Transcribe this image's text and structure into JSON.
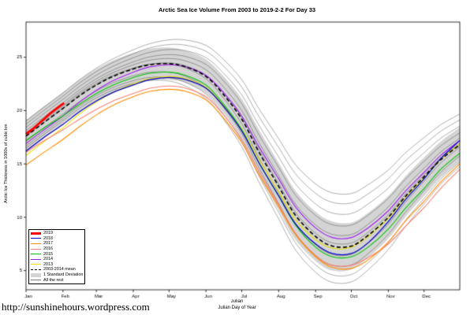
{
  "page": {
    "url_text": "http://sunshinehours.wordpress.com"
  },
  "chart_data": {
    "type": "line",
    "title": "Arctic Sea Ice Volume From 2003 to 2019-2-2  For Day 33",
    "xlabel_line1": "Julian",
    "xlabel_line2": "Julian Day of Year",
    "ylabel": "Arctic Ice Thickness in 1000s of cubic km",
    "xlim": [
      1,
      365
    ],
    "ylim": [
      3.2,
      28.3
    ],
    "grid": false,
    "legend_position": "bottom-left",
    "y_ticks": [
      5,
      10,
      15,
      20,
      25
    ],
    "month_tick_days": [
      1,
      32,
      60,
      91,
      121,
      152,
      182,
      213,
      244,
      274,
      305,
      335
    ],
    "month_labels": [
      "Jan",
      "Feb",
      "Mar",
      "Apr",
      "May",
      "Jun",
      "Jul",
      "Aug",
      "Sep",
      "Oct",
      "Nov",
      "Dec"
    ],
    "days": [
      1,
      15,
      32,
      46,
      60,
      74,
      91,
      105,
      121,
      135,
      152,
      166,
      182,
      196,
      213,
      227,
      244,
      258,
      274,
      288,
      305,
      319,
      335,
      349,
      365
    ],
    "mean_series": {
      "name": "2003-2014 mean",
      "color": "#000000",
      "dashed": true,
      "values": [
        17.6,
        18.8,
        20.2,
        21.4,
        22.4,
        23.2,
        23.9,
        24.3,
        24.4,
        24.1,
        23.2,
        21.6,
        19.2,
        16.2,
        12.9,
        10.2,
        8.2,
        7.3,
        7.3,
        8.3,
        10.0,
        11.9,
        13.8,
        15.4,
        16.8
      ]
    },
    "std_dev": {
      "name": "1 Standard Deviation",
      "color": "#d4d4d4",
      "values": [
        1.5,
        1.5,
        1.5,
        1.5,
        1.5,
        1.5,
        1.5,
        1.5,
        1.5,
        1.5,
        1.6,
        1.7,
        1.9,
        2.1,
        2.2,
        2.3,
        2.3,
        2.3,
        2.2,
        2.1,
        2.0,
        1.9,
        1.8,
        1.7,
        1.6
      ]
    },
    "background": {
      "name": "All the rest",
      "color": "rgba(45,45,45,0.55)",
      "seasonal_weight": [
        0.01,
        0.01,
        0.02,
        0.03,
        0.05,
        0.07,
        0.11,
        0.16,
        0.23,
        0.31,
        0.42,
        0.52,
        0.64,
        0.74,
        0.85,
        0.93,
        0.98,
        1.0,
        0.98,
        0.93,
        0.84,
        0.75,
        0.63,
        0.52,
        0.41
      ],
      "years": [
        {
          "year": "2003",
          "offset": 1.4,
          "summer_boost": 3.6
        },
        {
          "year": "2004",
          "offset": 1.1,
          "summer_boost": 3.0
        },
        {
          "year": "2005",
          "offset": 0.8,
          "summer_boost": 2.3
        },
        {
          "year": "2006",
          "offset": 0.5,
          "summer_boost": 1.5
        },
        {
          "year": "2007",
          "offset": 0.2,
          "summer_boost": -1.0
        },
        {
          "year": "2008",
          "offset": 0.3,
          "summer_boost": 0.8
        },
        {
          "year": "2009",
          "offset": 0.0,
          "summer_boost": 0.3
        },
        {
          "year": "2010",
          "offset": -0.5,
          "summer_boost": -1.3
        },
        {
          "year": "2011",
          "offset": -0.9,
          "summer_boost": -1.8
        },
        {
          "year": "2012",
          "offset": -1.1,
          "summer_boost": -2.3
        }
      ]
    },
    "series": [
      {
        "name": "2013",
        "color": "#e8df00",
        "width": 1.1,
        "values": [
          15.8,
          17.0,
          18.4,
          19.7,
          20.8,
          21.7,
          22.5,
          23.0,
          23.2,
          23.0,
          22.2,
          20.6,
          18.3,
          15.5,
          12.4,
          9.8,
          7.9,
          7.1,
          7.2,
          8.2,
          9.9,
          11.8,
          13.7,
          15.4,
          16.9
        ]
      },
      {
        "name": "2014",
        "color": "#a020f0",
        "width": 1.1,
        "values": [
          16.9,
          18.1,
          19.5,
          20.8,
          21.9,
          22.8,
          23.6,
          24.1,
          24.3,
          24.1,
          23.3,
          21.8,
          19.5,
          16.7,
          13.6,
          11.0,
          9.0,
          8.1,
          8.1,
          9.0,
          10.6,
          12.4,
          14.2,
          15.8,
          17.2
        ]
      },
      {
        "name": "2015",
        "color": "#00c400",
        "width": 1.1,
        "values": [
          17.2,
          18.3,
          19.5,
          20.6,
          21.6,
          22.4,
          23.1,
          23.5,
          23.6,
          23.3,
          22.4,
          20.7,
          18.2,
          15.2,
          12.0,
          9.3,
          7.2,
          6.3,
          6.3,
          7.2,
          8.9,
          10.8,
          12.7,
          14.5,
          16.0
        ]
      },
      {
        "name": "2016",
        "color": "#fa8072",
        "width": 1.1,
        "values": [
          16.1,
          17.1,
          18.2,
          19.2,
          20.1,
          20.9,
          21.6,
          22.1,
          22.3,
          22.1,
          21.3,
          19.7,
          17.3,
          14.4,
          11.2,
          8.5,
          6.4,
          5.5,
          5.5,
          6.2,
          7.5,
          9.1,
          10.9,
          12.7,
          14.5
        ]
      },
      {
        "name": "2017",
        "color": "#ff8c00",
        "width": 1.1,
        "values": [
          14.9,
          16.0,
          17.3,
          18.5,
          19.6,
          20.5,
          21.3,
          21.8,
          22.0,
          21.8,
          21.0,
          19.4,
          17.0,
          14.1,
          11.0,
          8.4,
          6.3,
          5.3,
          5.2,
          6.0,
          7.7,
          9.6,
          11.5,
          13.3,
          15.0
        ]
      },
      {
        "name": "2018",
        "color": "#0000cd",
        "width": 1.2,
        "values": [
          16.2,
          17.4,
          18.7,
          19.9,
          20.9,
          21.7,
          22.4,
          22.9,
          23.1,
          22.9,
          22.1,
          20.5,
          18.1,
          15.2,
          12.0,
          9.4,
          7.5,
          6.6,
          6.6,
          7.6,
          9.6,
          11.6,
          13.6,
          15.5,
          17.2
        ]
      }
    ],
    "current_year": {
      "name": "2019",
      "color": "#ff0000",
      "width": 2.8,
      "days": [
        1,
        8,
        15,
        22,
        29,
        33
      ],
      "values": [
        17.8,
        18.4,
        19.1,
        19.8,
        20.4,
        20.7
      ]
    },
    "legend_items": [
      {
        "label": "2019",
        "color": "#ff0000",
        "style": "thick-line"
      },
      {
        "label": "2018",
        "color": "#0000cd",
        "style": "line"
      },
      {
        "label": "2017",
        "color": "#ff8c00",
        "style": "line"
      },
      {
        "label": "2016",
        "color": "#fa8072",
        "style": "line"
      },
      {
        "label": "2015",
        "color": "#00c400",
        "style": "line"
      },
      {
        "label": "2014",
        "color": "#a020f0",
        "style": "line"
      },
      {
        "label": "2013",
        "color": "#e8df00",
        "style": "line"
      },
      {
        "label": "2003-2014 mean",
        "color": "#000000",
        "style": "dashed"
      },
      {
        "label": "1 Standard Deviation",
        "color": "#d4d4d4",
        "style": "band"
      },
      {
        "label": "All the rest",
        "color": "#777777",
        "style": "thin-line"
      }
    ]
  }
}
